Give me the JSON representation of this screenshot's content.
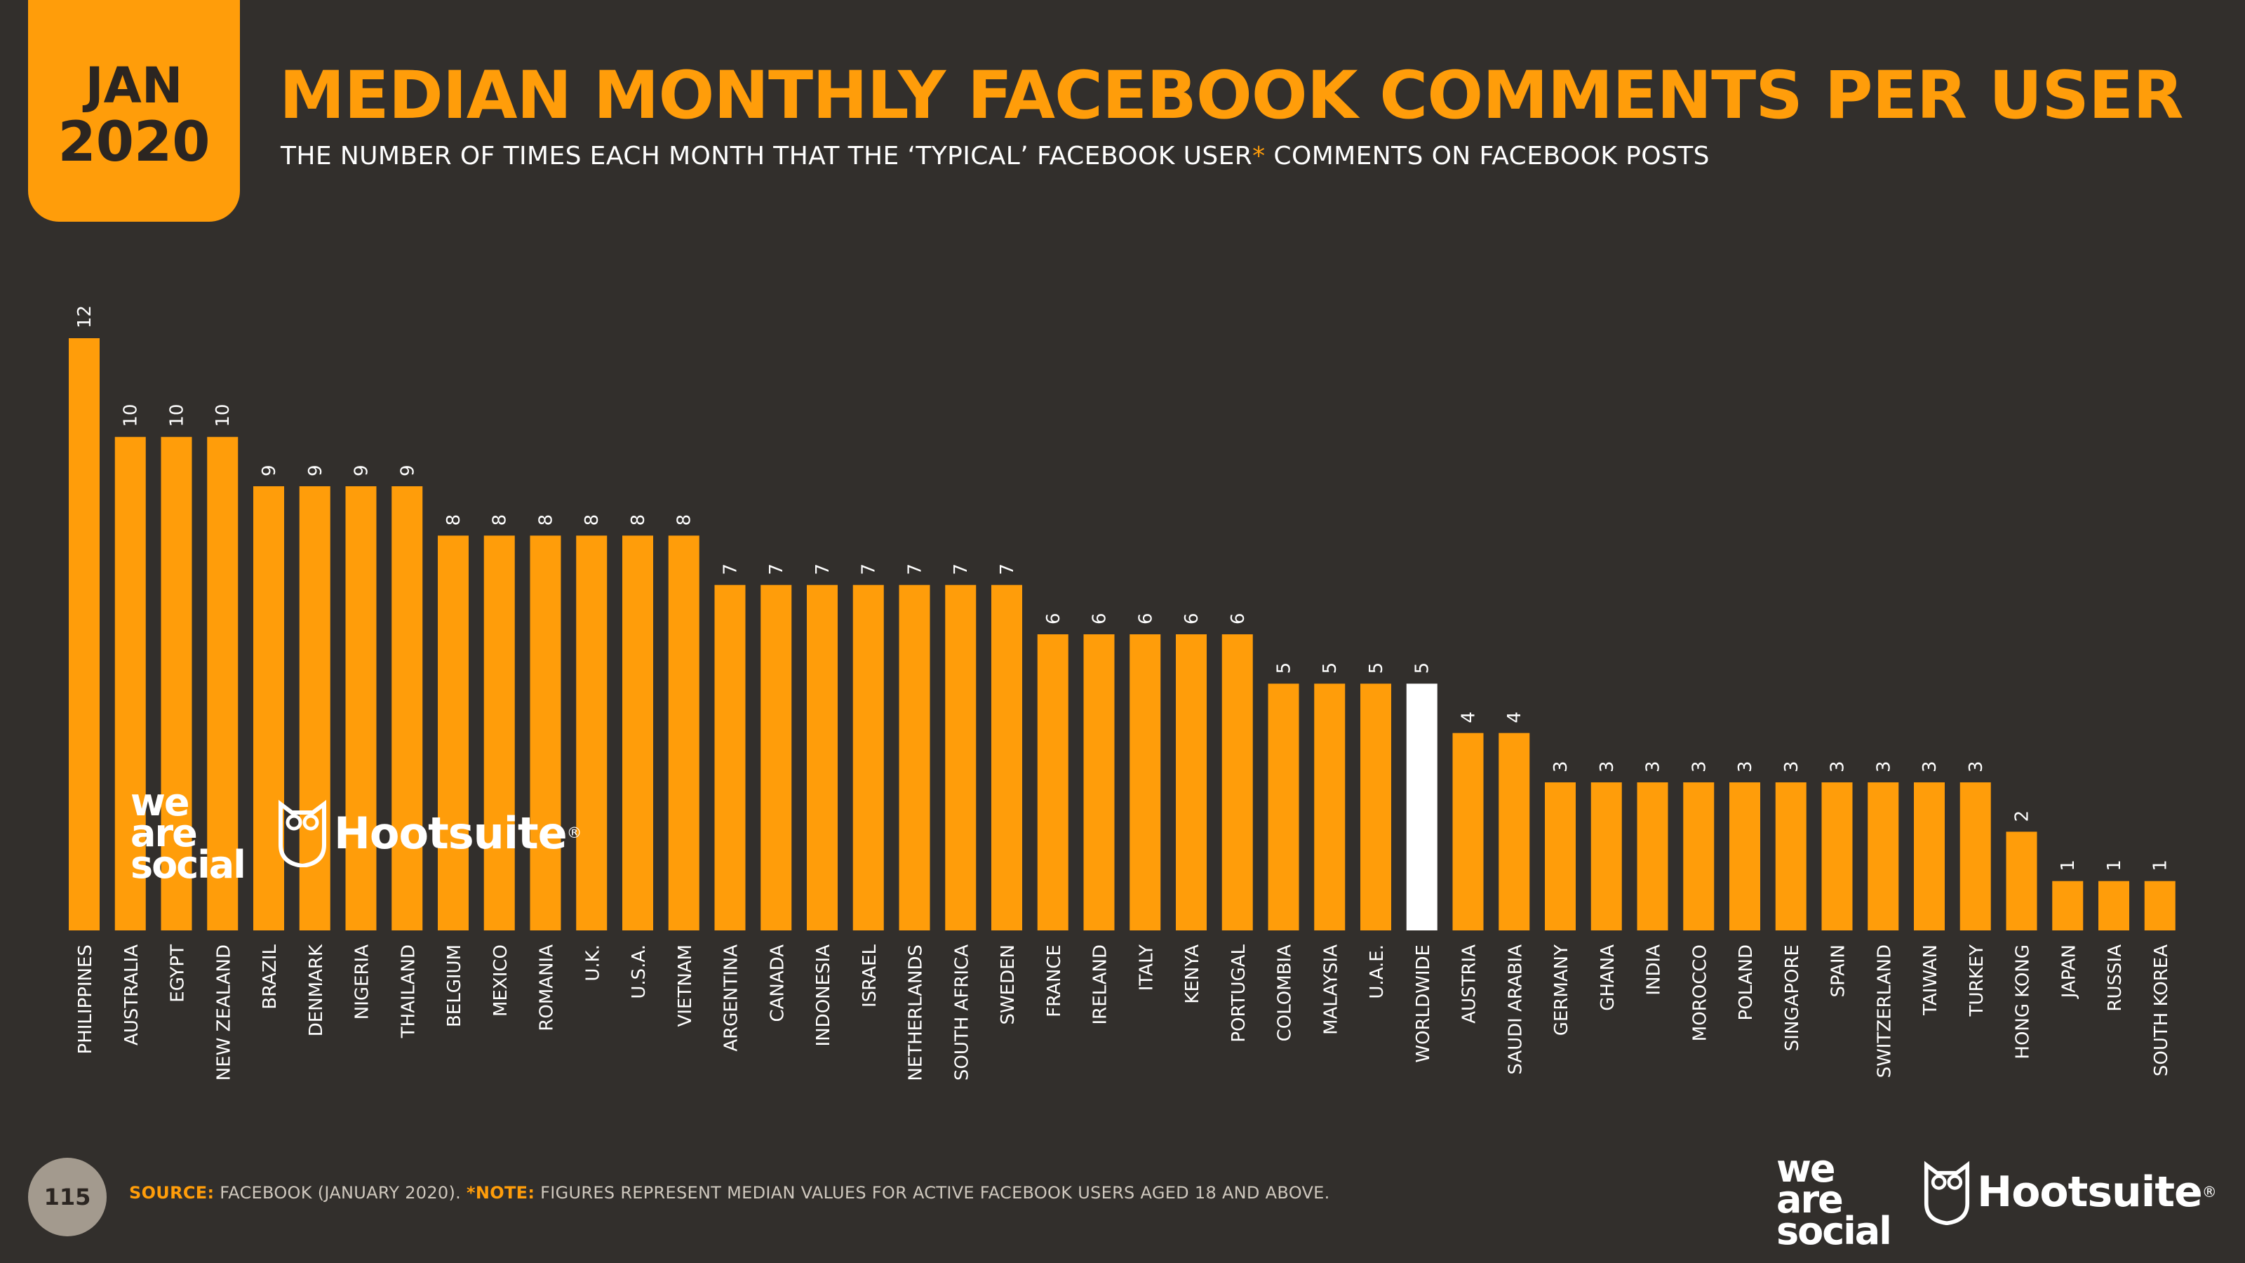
{
  "header": {
    "badge_month": "JAN",
    "badge_year": "2020",
    "title": "MEDIAN MONTHLY FACEBOOK COMMENTS PER USER",
    "subtitle_before": "THE NUMBER OF TIMES EACH MONTH THAT THE ‘TYPICAL’ FACEBOOK USER",
    "subtitle_star": "*",
    "subtitle_after": " COMMENTS ON FACEBOOK POSTS"
  },
  "footer": {
    "page_number": "115",
    "source_label": "SOURCE:",
    "source_text": " FACEBOOK (JANUARY 2020). ",
    "note_label": "*NOTE:",
    "note_text": " FIGURES REPRESENT MEDIAN VALUES FOR ACTIVE FACEBOOK USERS AGED 18 AND ABOVE."
  },
  "logos": {
    "we": "we",
    "are": "are",
    "social": "social",
    "hootsuite": "Hootsuite",
    "registered": "®"
  },
  "colors": {
    "background": "#322f2c",
    "accent": "#ff9d0a",
    "highlight": "#ffffff",
    "text": "#ffffff"
  },
  "chart_data": {
    "type": "bar",
    "title": "MEDIAN MONTHLY FACEBOOK COMMENTS PER USER",
    "xlabel": "",
    "ylabel": "",
    "ylim": [
      0,
      12
    ],
    "grid": false,
    "highlight_category": "WORLDWIDE",
    "categories": [
      "PHILIPPINES",
      "AUSTRALIA",
      "EGYPT",
      "NEW ZEALAND",
      "BRAZIL",
      "DENMARK",
      "NIGERIA",
      "THAILAND",
      "BELGIUM",
      "MEXICO",
      "ROMANIA",
      "U.K.",
      "U.S.A.",
      "VIETNAM",
      "ARGENTINA",
      "CANADA",
      "INDONESIA",
      "ISRAEL",
      "NETHERLANDS",
      "SOUTH AFRICA",
      "SWEDEN",
      "FRANCE",
      "IRELAND",
      "ITALY",
      "KENYA",
      "PORTUGAL",
      "COLOMBIA",
      "MALAYSIA",
      "U.A.E.",
      "WORLDWIDE",
      "AUSTRIA",
      "SAUDI ARABIA",
      "GERMANY",
      "GHANA",
      "INDIA",
      "MOROCCO",
      "POLAND",
      "SINGAPORE",
      "SPAIN",
      "SWITZERLAND",
      "TAIWAN",
      "TURKEY",
      "HONG KONG",
      "JAPAN",
      "RUSSIA",
      "SOUTH KOREA"
    ],
    "values": [
      12,
      10,
      10,
      10,
      9,
      9,
      9,
      9,
      8,
      8,
      8,
      8,
      8,
      8,
      7,
      7,
      7,
      7,
      7,
      7,
      7,
      6,
      6,
      6,
      6,
      6,
      5,
      5,
      5,
      5,
      4,
      4,
      3,
      3,
      3,
      3,
      3,
      3,
      3,
      3,
      3,
      3,
      2,
      1,
      1,
      1
    ]
  }
}
